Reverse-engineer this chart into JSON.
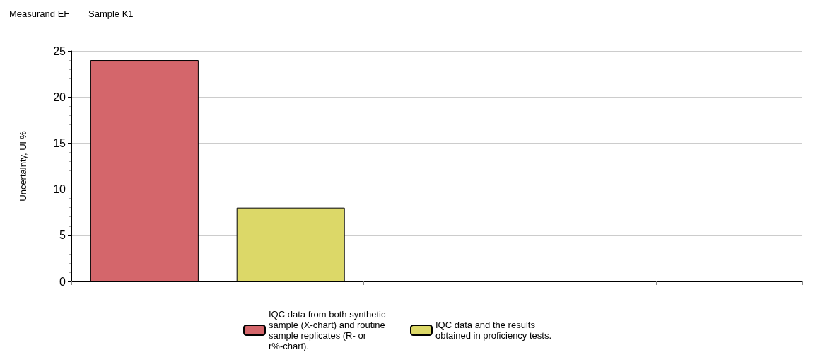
{
  "chart_data": {
    "type": "bar",
    "title": "Measurand EF",
    "subtitle": "Sample K1",
    "ylabel": "Uncertainty, Ui %",
    "categories": [
      null,
      null,
      null,
      null,
      null
    ],
    "stacked": true,
    "series": [
      {
        "name": "IQC data from both synthetic sample (X-chart) and routine sample replicates (R- or r%-chart).",
        "color": "#d4666b",
        "values": [
          24,
          null,
          null,
          null,
          null
        ]
      },
      {
        "name": "IQC data and the results obtained in proficiency tests.",
        "color": "#dcd868",
        "values": [
          null,
          8,
          null,
          null,
          null
        ]
      }
    ],
    "ylim": [
      0,
      25
    ],
    "yticks": [
      0,
      5,
      10,
      15,
      20,
      25
    ],
    "grid": "y",
    "legend": "bottom"
  }
}
